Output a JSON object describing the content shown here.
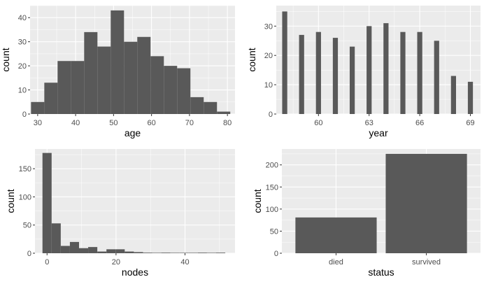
{
  "chart_data": [
    {
      "type": "bar",
      "variant": "histogram",
      "xlabel": "age",
      "ylabel": "count",
      "xlim": [
        28,
        82
      ],
      "ylim": [
        0,
        45
      ],
      "xticks": [
        30,
        40,
        50,
        60,
        70,
        80
      ],
      "yticks": [
        0,
        10,
        20,
        30,
        40
      ],
      "bin_width": 3.5,
      "bins": [
        {
          "x": 30.0,
          "count": 5
        },
        {
          "x": 33.5,
          "count": 13
        },
        {
          "x": 37.0,
          "count": 22
        },
        {
          "x": 40.5,
          "count": 22
        },
        {
          "x": 44.0,
          "count": 34
        },
        {
          "x": 47.5,
          "count": 28
        },
        {
          "x": 51.0,
          "count": 43
        },
        {
          "x": 54.5,
          "count": 30
        },
        {
          "x": 58.0,
          "count": 32
        },
        {
          "x": 61.5,
          "count": 24
        },
        {
          "x": 65.0,
          "count": 20
        },
        {
          "x": 68.5,
          "count": 19
        },
        {
          "x": 72.0,
          "count": 7
        },
        {
          "x": 75.5,
          "count": 5
        },
        {
          "x": 79.0,
          "count": 1
        }
      ],
      "grid": true
    },
    {
      "type": "bar",
      "variant": "histogram",
      "xlabel": "year",
      "ylabel": "count",
      "xlim": [
        57.5,
        69.6
      ],
      "ylim": [
        0,
        37
      ],
      "xticks": [
        60,
        63,
        66,
        69
      ],
      "yticks": [
        0,
        10,
        20,
        30
      ],
      "bin_width": 0.3,
      "bins": [
        {
          "x": 58,
          "count": 35
        },
        {
          "x": 59,
          "count": 27
        },
        {
          "x": 60,
          "count": 28
        },
        {
          "x": 61,
          "count": 26
        },
        {
          "x": 62,
          "count": 23
        },
        {
          "x": 63,
          "count": 30
        },
        {
          "x": 64,
          "count": 31
        },
        {
          "x": 65,
          "count": 28
        },
        {
          "x": 66,
          "count": 28
        },
        {
          "x": 67,
          "count": 25
        },
        {
          "x": 68,
          "count": 13
        },
        {
          "x": 69,
          "count": 11
        }
      ],
      "grid": true
    },
    {
      "type": "bar",
      "variant": "histogram",
      "xlabel": "nodes",
      "ylabel": "count",
      "xlim": [
        -3.5,
        54.5
      ],
      "ylim": [
        0,
        185
      ],
      "xticks": [
        0,
        20,
        40
      ],
      "yticks": [
        0,
        50,
        100,
        150
      ],
      "bin_width": 2.65,
      "bins": [
        {
          "x": 0.0,
          "count": 178
        },
        {
          "x": 2.65,
          "count": 53
        },
        {
          "x": 5.3,
          "count": 13
        },
        {
          "x": 7.95,
          "count": 20
        },
        {
          "x": 10.6,
          "count": 9
        },
        {
          "x": 13.25,
          "count": 11
        },
        {
          "x": 15.9,
          "count": 3
        },
        {
          "x": 18.55,
          "count": 7
        },
        {
          "x": 21.2,
          "count": 7
        },
        {
          "x": 23.85,
          "count": 3
        },
        {
          "x": 26.5,
          "count": 2
        },
        {
          "x": 29.15,
          "count": 1
        },
        {
          "x": 31.8,
          "count": 0
        },
        {
          "x": 34.45,
          "count": 1
        },
        {
          "x": 37.1,
          "count": 0
        },
        {
          "x": 39.75,
          "count": 0
        },
        {
          "x": 42.4,
          "count": 0
        },
        {
          "x": 45.05,
          "count": 1
        },
        {
          "x": 47.7,
          "count": 0
        },
        {
          "x": 50.35,
          "count": 1
        }
      ],
      "grid": true
    },
    {
      "type": "bar",
      "xlabel": "status",
      "ylabel": "count",
      "categories": [
        "died",
        "survived"
      ],
      "values": [
        81,
        225
      ],
      "ylim": [
        0,
        236
      ],
      "yticks": [
        0,
        50,
        100,
        150,
        200
      ],
      "grid": true
    }
  ]
}
